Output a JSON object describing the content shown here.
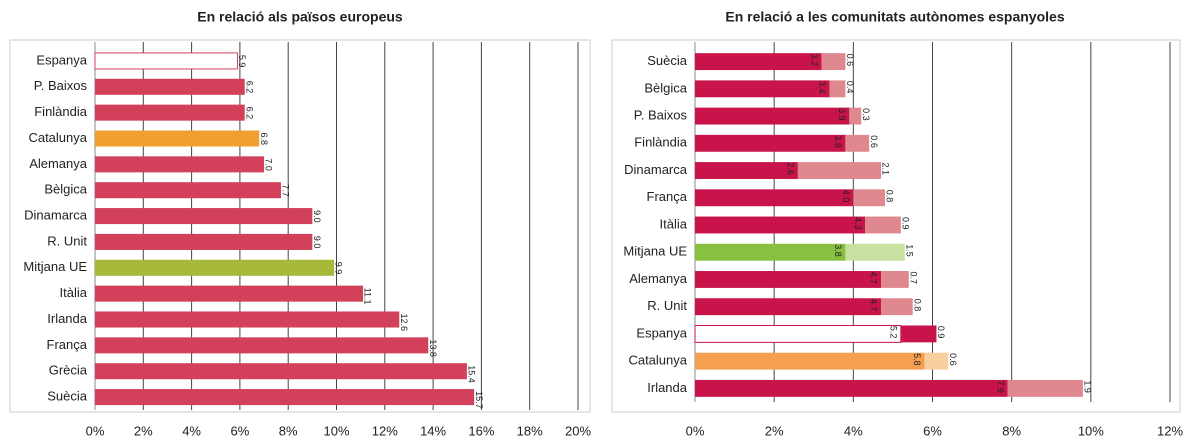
{
  "chart_data": [
    {
      "type": "bar",
      "title": "En relació als països europeus",
      "categories": [
        "Espanya",
        "P. Baixos",
        "Finlàndia",
        "Catalunya",
        "Alemanya",
        "Bèlgica",
        "Dinamarca",
        "R. Unit",
        "Mitjana UE",
        "Itàlia",
        "Irlanda",
        "França",
        "Grècia",
        "Suècia"
      ],
      "values": [
        5.9,
        6.2,
        6.2,
        6.8,
        7.0,
        7.7,
        9.0,
        9.0,
        9.9,
        11.1,
        12.6,
        13.8,
        15.4,
        15.7
      ],
      "value_labels": [
        "5.9",
        "6.2",
        "6.2",
        "6.8",
        "7.0",
        "7.7",
        "9.0",
        "9.0",
        "9.9",
        "11.1",
        "12.6",
        "13.8",
        "15.4",
        "15.7"
      ],
      "colors": [
        "#ffffff",
        "#d2405a",
        "#d2405a",
        "#f0a030",
        "#d2405a",
        "#d2405a",
        "#d2405a",
        "#d2405a",
        "#a8b838",
        "#d2405a",
        "#d2405a",
        "#d2405a",
        "#d2405a",
        "#d2405a"
      ],
      "xlim": [
        0,
        20
      ],
      "xticks": [
        {
          "value": 0,
          "label": "0%"
        },
        {
          "value": 2,
          "label": "2%"
        },
        {
          "value": 4,
          "label": "4%"
        },
        {
          "value": 6,
          "label": "6%"
        },
        {
          "value": 8,
          "label": "8%"
        },
        {
          "value": 10,
          "label": "10%"
        },
        {
          "value": 12,
          "label": "12%"
        },
        {
          "value": 14,
          "label": "14%"
        },
        {
          "value": 16,
          "label": "16%"
        },
        {
          "value": 18,
          "label": "18%"
        },
        {
          "value": 20,
          "label": "20%"
        }
      ],
      "grid": true
    },
    {
      "type": "stacked_bar",
      "title": "En relació a les comunitats autònomes espanyoles",
      "categories": [
        "Suècia",
        "Bèlgica",
        "P. Baixos",
        "Finlàndia",
        "Dinamarca",
        "França",
        "Itàlia",
        "Mitjana UE",
        "Alemanya",
        "R. Unit",
        "Espanya",
        "Catalunya",
        "Irlanda"
      ],
      "series": [
        {
          "values": [
            3.2,
            3.4,
            3.9,
            3.8,
            2.6,
            4.0,
            4.3,
            3.8,
            4.7,
            4.7,
            5.2,
            5.8,
            7.9
          ],
          "value_labels": [
            "3.2",
            "3.4",
            "3.9",
            "3.8",
            "2.6",
            "4.0",
            "4.3",
            "3.8",
            "4.7",
            "4.7",
            "5.2",
            "5.8",
            "7.9"
          ],
          "colors": [
            "#c8144a",
            "#c8144a",
            "#c8144a",
            "#c8144a",
            "#c8144a",
            "#c8144a",
            "#c8144a",
            "#88c040",
            "#c8144a",
            "#c8144a",
            "#ffffff",
            "#f5a050",
            "#c8144a"
          ]
        },
        {
          "values": [
            0.6,
            0.4,
            0.3,
            0.6,
            2.1,
            0.8,
            0.9,
            1.5,
            0.7,
            0.8,
            0.9,
            0.6,
            1.9
          ],
          "value_labels": [
            "0.6",
            "0.4",
            "0.3",
            "0.6",
            "2.1",
            "0.8",
            "0.9",
            "1.5",
            "0.7",
            "0.8",
            "0.9",
            "0.6",
            "1.9"
          ],
          "colors": [
            "#e08890",
            "#e08890",
            "#e08890",
            "#e08890",
            "#e08890",
            "#e08890",
            "#e08890",
            "#c8e0a0",
            "#e08890",
            "#e08890",
            "#c8144a",
            "#f8d0a0",
            "#e08890"
          ]
        }
      ],
      "xlim": [
        0,
        12
      ],
      "xticks": [
        {
          "value": 0,
          "label": "0%"
        },
        {
          "value": 2,
          "label": "2%"
        },
        {
          "value": 4,
          "label": "4%"
        },
        {
          "value": 6,
          "label": "6%"
        },
        {
          "value": 8,
          "label": "8%"
        },
        {
          "value": 10,
          "label": "10%"
        },
        {
          "value": 12,
          "label": "12%"
        }
      ],
      "grid": true
    }
  ]
}
